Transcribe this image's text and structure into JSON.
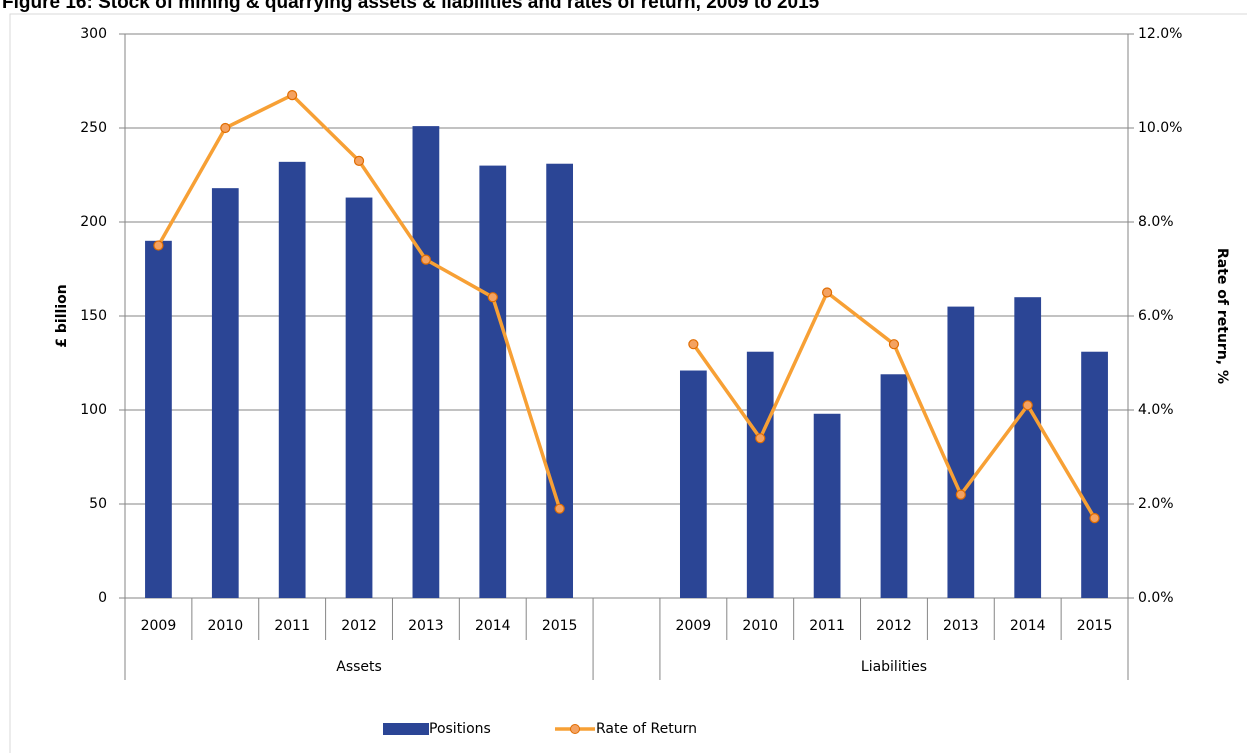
{
  "chart_data": {
    "type": "bar_line",
    "title": "Figure 16: Stock of mining & quarrying assets & liabilities and rates of return, 2009 to 2015",
    "y_label": "£ billion",
    "y2_label": "Rate of return, %",
    "categories": [
      "2009",
      "2010",
      "2011",
      "2012",
      "2013",
      "2014",
      "2015",
      null,
      "2009",
      "2010",
      "2011",
      "2012",
      "2013",
      "2014",
      "2015"
    ],
    "groups": [
      {
        "label": "Assets",
        "start": 0,
        "end": 6
      },
      {
        "label": "Liabilities",
        "start": 8,
        "end": 14
      }
    ],
    "series": [
      {
        "name": "Positions",
        "type": "bar",
        "color": "#2b4595",
        "values": [
          190,
          218,
          232,
          213,
          251,
          230,
          231,
          null,
          121,
          131,
          98,
          119,
          155,
          160,
          131
        ]
      },
      {
        "name": "Rate of Return",
        "type": "line",
        "axis": "y2",
        "color": "#f7a035",
        "values": [
          7.5,
          10.0,
          10.7,
          9.3,
          7.2,
          6.4,
          1.9,
          null,
          5.4,
          3.4,
          6.5,
          5.4,
          2.2,
          4.1,
          1.7
        ]
      }
    ],
    "ylim": [
      0,
      300
    ],
    "yticks": [
      0,
      50,
      100,
      150,
      200,
      250,
      300
    ],
    "y2lim": [
      0,
      12
    ],
    "y2ticks": [
      {
        "value": 0,
        "label": "0.0%"
      },
      {
        "value": 2,
        "label": "2.0%"
      },
      {
        "value": 4,
        "label": "4.0%"
      },
      {
        "value": 6,
        "label": "6.0%"
      },
      {
        "value": 8,
        "label": "8.0%"
      },
      {
        "value": 10,
        "label": "10.0%"
      },
      {
        "value": 12,
        "label": "12.0%"
      }
    ],
    "grid": true,
    "legend": "bottom"
  }
}
